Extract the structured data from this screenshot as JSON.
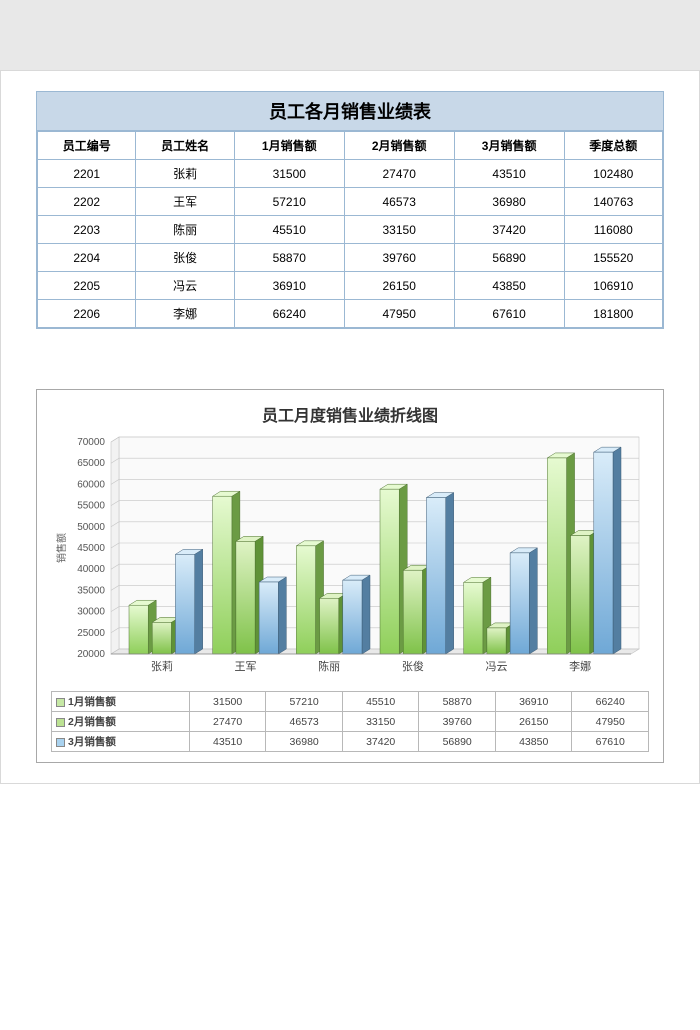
{
  "table": {
    "title": "员工各月销售业绩表",
    "columns": [
      "员工编号",
      "员工姓名",
      "1月销售额",
      "2月销售额",
      "3月销售额",
      "季度总额"
    ],
    "rows": [
      [
        "2201",
        "张莉",
        31500,
        27470,
        43510,
        102480
      ],
      [
        "2202",
        "王军",
        57210,
        46573,
        36980,
        140763
      ],
      [
        "2203",
        "陈丽",
        45510,
        33150,
        37420,
        116080
      ],
      [
        "2204",
        "张俊",
        58870,
        39760,
        56890,
        155520
      ],
      [
        "2205",
        "冯云",
        36910,
        26150,
        43850,
        106910
      ],
      [
        "2206",
        "李娜",
        66240,
        47950,
        67610,
        181800
      ]
    ],
    "header_bg": "#c8d8e8",
    "border_color": "#9bb8d3"
  },
  "chart": {
    "title": "员工月度销售业绩折线图",
    "type": "bar-3d-grouped",
    "y_axis_label": "销售额",
    "categories": [
      "张莉",
      "王军",
      "陈丽",
      "张俊",
      "冯云",
      "李娜"
    ],
    "series": [
      {
        "name": "1月销售额",
        "values": [
          31500,
          57210,
          45510,
          58870,
          36910,
          66240
        ],
        "color_top": "#e6fad1",
        "color_bottom": "#8fcf5a",
        "swatch": "#c6e8a5"
      },
      {
        "name": "2月销售额",
        "values": [
          27470,
          46573,
          33150,
          39760,
          26150,
          47950
        ],
        "color_top": "#dff3c5",
        "color_bottom": "#7fc249",
        "swatch": "#bce293"
      },
      {
        "name": "3月销售额",
        "values": [
          43510,
          36980,
          37420,
          56890,
          43850,
          67610
        ],
        "color_top": "#d9ecf9",
        "color_bottom": "#6fa8d6",
        "swatch": "#a9d2ef"
      }
    ],
    "y_ticks": [
      20000,
      25000,
      30000,
      35000,
      40000,
      45000,
      50000,
      55000,
      60000,
      65000,
      70000
    ],
    "ylim": [
      20000,
      70000
    ],
    "plot_bg": "#ffffff",
    "grid_color": "#c4c4c4",
    "floor_color": "#e9e9e9",
    "wall_color": "#fafafa",
    "axis_label_fontsize": 10,
    "tick_fontsize": 10,
    "title_fontsize": 16,
    "bar_gap": 4,
    "group_gap": 18,
    "depth_dx": 8,
    "depth_dy": -5
  }
}
